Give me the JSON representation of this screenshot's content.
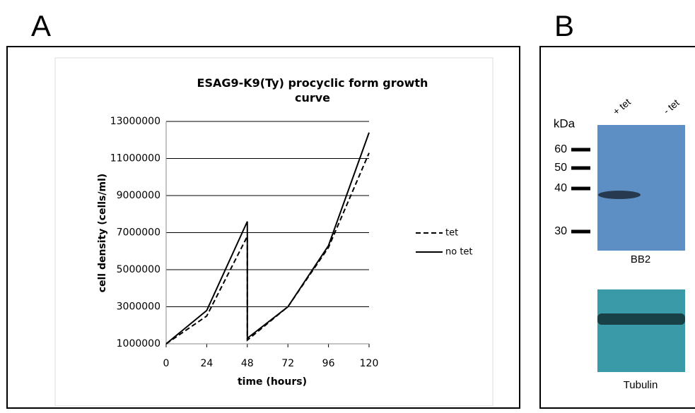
{
  "panels": {
    "a": "A",
    "b": "B"
  },
  "chart_data": {
    "type": "line",
    "title": "ESAG9-K9(Ty) procyclic form growth curve",
    "x_label": "time (hours)",
    "y_label": "cell density (cells/ml)",
    "x": [
      0,
      24,
      48,
      48,
      72,
      96,
      120
    ],
    "series": [
      {
        "name": "tet",
        "color": "#000000",
        "line_style": "dashed",
        "values": [
          1000000,
          2500000,
          6800000,
          1200000,
          3000000,
          6200000,
          11300000
        ]
      },
      {
        "name": "no tet",
        "color": "#000000",
        "line_style": "solid",
        "values": [
          1000000,
          2800000,
          7600000,
          1300000,
          3000000,
          6300000,
          12400000
        ]
      }
    ],
    "xlim": [
      0,
      120
    ],
    "xticks": [
      0,
      24,
      48,
      72,
      96,
      120
    ],
    "ylim": [
      1000000,
      13000000
    ],
    "yticks": [
      1000000,
      3000000,
      5000000,
      7000000,
      9000000,
      11000000,
      13000000
    ],
    "grid": true,
    "legend": "right"
  },
  "blot": {
    "lanes": [
      "+ tet",
      "- tet"
    ],
    "unit": "kDa",
    "markers": [
      "60",
      "50",
      "40",
      "30"
    ],
    "antibody": "BB2",
    "loading_control": "Tubulin"
  }
}
